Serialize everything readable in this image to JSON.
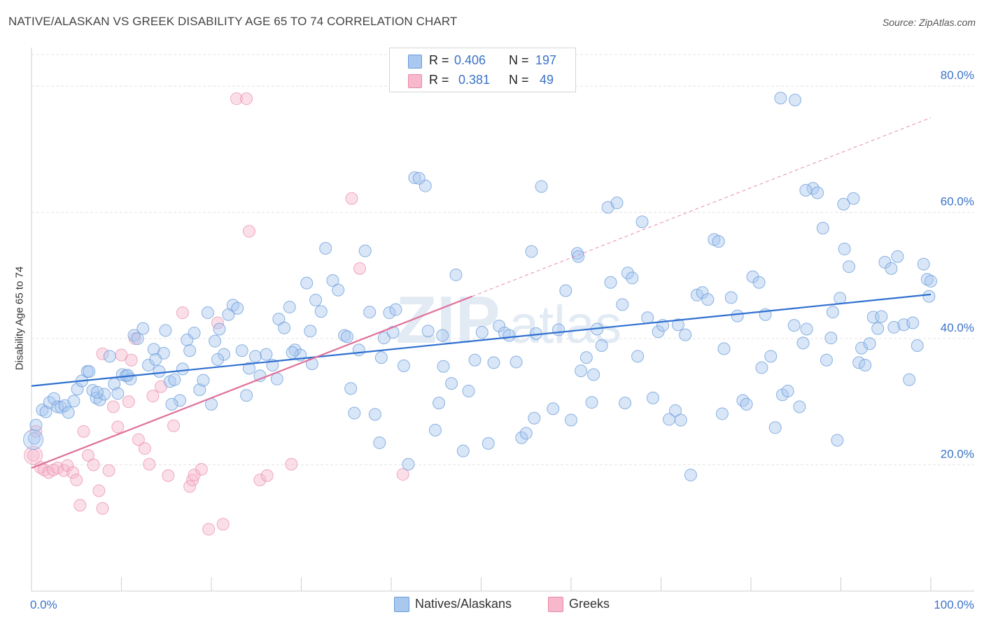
{
  "header": {
    "title": "NATIVE/ALASKAN VS GREEK DISABILITY AGE 65 TO 74 CORRELATION CHART",
    "source": "Source: ZipAtlas.com"
  },
  "legend": {
    "series1": {
      "r_label": "R =",
      "r_value": "0.406",
      "n_label": "N =",
      "n_value": "197"
    },
    "series2": {
      "r_label": "R =",
      "r_value": "0.381",
      "n_label": "N =",
      "n_value": "49"
    }
  },
  "bottom_legend": {
    "series1": "Natives/Alaskans",
    "series2": "Greeks"
  },
  "colors": {
    "blue_fill": "#a9c8f0",
    "blue_stroke": "#6a9bd8",
    "blue_line": "#2f6fd0",
    "pink_fill": "#f7b8cc",
    "pink_stroke": "#e98aa8",
    "pink_line": "#e0709a",
    "grid": "#e4e4e4",
    "axis_label": "#3b73c8"
  },
  "chart_data": {
    "type": "scatter",
    "title": "NATIVE/ALASKAN VS GREEK DISABILITY AGE 65 TO 74 CORRELATION CHART",
    "xlabel": "",
    "ylabel": "Disability Age 65 to 74",
    "xlim": [
      0,
      100
    ],
    "ylim": [
      0,
      85
    ],
    "x_tick_labels": [
      "0.0%",
      "100.0%"
    ],
    "y_ticks": [
      20,
      40,
      60,
      80
    ],
    "y_tick_labels": [
      "20.0%",
      "40.0%",
      "60.0%",
      "80.0%"
    ],
    "grid": true,
    "legend_position": "top-center",
    "series": [
      {
        "name": "Natives/Alaskans",
        "r": 0.406,
        "n": 197,
        "trend": {
          "x": [
            0,
            100
          ],
          "y": [
            32.5,
            47.0
          ]
        },
        "points": [
          [
            0.3,
            24.2
          ],
          [
            0.5,
            26.3
          ],
          [
            1.2,
            28.7
          ],
          [
            1.6,
            28.4
          ],
          [
            2.0,
            29.9
          ],
          [
            2.5,
            30.5
          ],
          [
            2.9,
            29.2
          ],
          [
            3.3,
            29.1
          ],
          [
            3.7,
            29.4
          ],
          [
            4.1,
            28.3
          ],
          [
            4.7,
            30.1
          ],
          [
            5.1,
            32.0
          ],
          [
            5.6,
            33.3
          ],
          [
            6.2,
            34.8
          ],
          [
            6.8,
            31.8
          ],
          [
            7.2,
            30.6
          ],
          [
            7.6,
            30.3
          ],
          [
            8.1,
            31.2
          ],
          [
            8.7,
            37.2
          ],
          [
            9.2,
            32.8
          ],
          [
            9.6,
            31.3
          ],
          [
            10.1,
            34.3
          ],
          [
            10.5,
            34.1
          ],
          [
            11.0,
            33.6
          ],
          [
            11.4,
            40.5
          ],
          [
            11.8,
            40.0
          ],
          [
            12.4,
            41.6
          ],
          [
            13.0,
            35.8
          ],
          [
            13.6,
            38.3
          ],
          [
            14.2,
            34.8
          ],
          [
            14.7,
            37.7
          ],
          [
            15.4,
            33.2
          ],
          [
            15.9,
            33.5
          ],
          [
            16.5,
            30.2
          ],
          [
            16.8,
            35.2
          ],
          [
            17.3,
            39.8
          ],
          [
            17.6,
            38.1
          ],
          [
            18.1,
            40.9
          ],
          [
            18.7,
            31.9
          ],
          [
            19.1,
            33.4
          ],
          [
            19.6,
            44.1
          ],
          [
            20.0,
            29.6
          ],
          [
            20.4,
            39.6
          ],
          [
            20.9,
            41.5
          ],
          [
            21.4,
            37.5
          ],
          [
            21.9,
            43.8
          ],
          [
            22.4,
            45.3
          ],
          [
            22.9,
            44.8
          ],
          [
            23.4,
            38.1
          ],
          [
            24.2,
            35.3
          ],
          [
            24.9,
            37.2
          ],
          [
            25.4,
            34.1
          ],
          [
            26.1,
            37.5
          ],
          [
            26.8,
            35.8
          ],
          [
            27.5,
            43.1
          ],
          [
            28.1,
            41.7
          ],
          [
            28.7,
            45.0
          ],
          [
            29.3,
            38.2
          ],
          [
            29.9,
            37.4
          ],
          [
            30.6,
            48.8
          ],
          [
            31.0,
            41.2
          ],
          [
            31.6,
            46.1
          ],
          [
            32.2,
            44.3
          ],
          [
            32.7,
            54.3
          ],
          [
            33.5,
            49.2
          ],
          [
            34.1,
            47.7
          ],
          [
            34.8,
            40.5
          ],
          [
            35.5,
            32.1
          ],
          [
            35.9,
            28.2
          ],
          [
            36.4,
            38.2
          ],
          [
            37.1,
            53.9
          ],
          [
            37.6,
            44.2
          ],
          [
            38.2,
            28.0
          ],
          [
            38.7,
            23.5
          ],
          [
            39.2,
            40.1
          ],
          [
            39.8,
            44.1
          ],
          [
            40.5,
            44.6
          ],
          [
            41.4,
            35.7
          ],
          [
            41.9,
            20.1
          ],
          [
            42.6,
            65.5
          ],
          [
            43.1,
            65.4
          ],
          [
            43.8,
            64.2
          ],
          [
            44.1,
            41.2
          ],
          [
            44.9,
            25.5
          ],
          [
            45.3,
            29.8
          ],
          [
            45.8,
            35.6
          ],
          [
            46.7,
            32.9
          ],
          [
            47.2,
            50.1
          ],
          [
            48.0,
            22.2
          ],
          [
            48.6,
            31.7
          ],
          [
            49.3,
            36.6
          ],
          [
            50.1,
            41.0
          ],
          [
            50.8,
            23.4
          ],
          [
            51.4,
            36.2
          ],
          [
            52.0,
            42.0
          ],
          [
            52.6,
            40.9
          ],
          [
            53.1,
            40.5
          ],
          [
            53.9,
            36.3
          ],
          [
            54.5,
            24.3
          ],
          [
            55.0,
            25.0
          ],
          [
            55.6,
            53.8
          ],
          [
            56.1,
            40.8
          ],
          [
            56.7,
            64.1
          ],
          [
            58.0,
            28.9
          ],
          [
            58.6,
            41.4
          ],
          [
            59.4,
            47.6
          ],
          [
            60.0,
            27.1
          ],
          [
            60.7,
            53.5
          ],
          [
            61.1,
            34.9
          ],
          [
            61.7,
            37.0
          ],
          [
            62.3,
            29.9
          ],
          [
            62.9,
            41.5
          ],
          [
            63.4,
            38.9
          ],
          [
            64.1,
            60.8
          ],
          [
            64.4,
            48.9
          ],
          [
            65.1,
            61.5
          ],
          [
            65.7,
            45.4
          ],
          [
            66.3,
            50.4
          ],
          [
            66.8,
            49.6
          ],
          [
            67.4,
            37.2
          ],
          [
            67.9,
            58.5
          ],
          [
            68.5,
            43.3
          ],
          [
            69.1,
            30.6
          ],
          [
            69.7,
            41.1
          ],
          [
            70.2,
            42.1
          ],
          [
            70.9,
            27.2
          ],
          [
            71.6,
            28.6
          ],
          [
            72.2,
            27.1
          ],
          [
            72.7,
            40.6
          ],
          [
            73.3,
            18.4
          ],
          [
            74.0,
            46.9
          ],
          [
            74.6,
            47.3
          ],
          [
            75.2,
            46.2
          ],
          [
            75.9,
            55.7
          ],
          [
            76.4,
            55.4
          ],
          [
            77.0,
            38.4
          ],
          [
            77.8,
            46.5
          ],
          [
            78.5,
            43.6
          ],
          [
            79.1,
            30.2
          ],
          [
            79.5,
            29.6
          ],
          [
            80.2,
            49.8
          ],
          [
            80.9,
            48.9
          ],
          [
            81.6,
            43.8
          ],
          [
            82.2,
            37.2
          ],
          [
            82.7,
            25.9
          ],
          [
            83.5,
            31.1
          ],
          [
            84.1,
            31.7
          ],
          [
            84.8,
            42.1
          ],
          [
            85.4,
            29.2
          ],
          [
            85.8,
            39.3
          ],
          [
            86.2,
            41.5
          ],
          [
            86.9,
            63.8
          ],
          [
            87.4,
            63.1
          ],
          [
            88.0,
            57.5
          ],
          [
            88.4,
            36.6
          ],
          [
            89.1,
            44.2
          ],
          [
            89.6,
            23.9
          ],
          [
            89.9,
            46.4
          ],
          [
            90.4,
            54.2
          ],
          [
            90.9,
            51.4
          ],
          [
            91.4,
            62.2
          ],
          [
            92.0,
            36.2
          ],
          [
            92.3,
            38.5
          ],
          [
            92.7,
            35.8
          ],
          [
            93.6,
            43.4
          ],
          [
            94.1,
            41.6
          ],
          [
            94.5,
            43.5
          ],
          [
            94.9,
            52.1
          ],
          [
            95.6,
            51.1
          ],
          [
            95.9,
            41.8
          ],
          [
            96.3,
            53.0
          ],
          [
            97.0,
            42.2
          ],
          [
            97.6,
            33.5
          ],
          [
            98.0,
            42.5
          ],
          [
            98.5,
            38.9
          ],
          [
            99.2,
            51.8
          ],
          [
            99.6,
            49.4
          ],
          [
            99.8,
            46.7
          ],
          [
            100.0,
            49.1
          ],
          [
            83.3,
            78.1
          ],
          [
            84.9,
            77.8
          ],
          [
            86.1,
            63.5
          ],
          [
            90.3,
            61.3
          ],
          [
            13.8,
            36.7
          ],
          [
            23.9,
            31.0
          ],
          [
            10.7,
            34.2
          ],
          [
            7.3,
            31.5
          ],
          [
            15.6,
            29.6
          ],
          [
            27.3,
            33.6
          ],
          [
            31.2,
            36.0
          ],
          [
            35.1,
            40.3
          ],
          [
            40.2,
            41.0
          ],
          [
            55.9,
            27.4
          ],
          [
            62.5,
            34.3
          ],
          [
            66.0,
            29.8
          ],
          [
            71.9,
            42.2
          ],
          [
            76.8,
            28.1
          ],
          [
            81.2,
            35.4
          ],
          [
            88.9,
            40.1
          ],
          [
            93.2,
            39.2
          ],
          [
            60.8,
            53.0
          ],
          [
            45.7,
            40.5
          ],
          [
            38.9,
            37.0
          ],
          [
            29.0,
            37.8
          ],
          [
            20.7,
            36.7
          ],
          [
            14.9,
            41.3
          ],
          [
            6.4,
            34.8
          ]
        ]
      },
      {
        "name": "Greeks",
        "r": 0.381,
        "n": 49,
        "trend": {
          "x": [
            0,
            49
          ],
          "y": [
            19.5,
            46.7
          ]
        },
        "trend_extrapolated": {
          "x": [
            49,
            100
          ],
          "y": [
            46.7,
            75.0
          ]
        },
        "points": [
          [
            0.2,
            21.5
          ],
          [
            0.5,
            25.3
          ],
          [
            1.0,
            19.6
          ],
          [
            1.4,
            19.2
          ],
          [
            1.9,
            18.8
          ],
          [
            2.4,
            19.2
          ],
          [
            2.9,
            19.5
          ],
          [
            3.6,
            19.1
          ],
          [
            4.0,
            19.9
          ],
          [
            4.6,
            18.8
          ],
          [
            5.0,
            17.6
          ],
          [
            5.4,
            13.6
          ],
          [
            5.8,
            25.3
          ],
          [
            6.3,
            21.5
          ],
          [
            6.9,
            20.0
          ],
          [
            7.5,
            15.9
          ],
          [
            7.9,
            13.1
          ],
          [
            8.6,
            19.1
          ],
          [
            9.1,
            29.2
          ],
          [
            9.6,
            26.0
          ],
          [
            10.0,
            37.4
          ],
          [
            10.8,
            30.0
          ],
          [
            11.5,
            40.0
          ],
          [
            11.9,
            24.0
          ],
          [
            12.6,
            22.6
          ],
          [
            13.1,
            20.1
          ],
          [
            13.5,
            30.9
          ],
          [
            14.4,
            32.4
          ],
          [
            15.2,
            18.3
          ],
          [
            15.8,
            26.2
          ],
          [
            16.8,
            44.1
          ],
          [
            17.6,
            16.6
          ],
          [
            17.9,
            17.6
          ],
          [
            18.1,
            18.4
          ],
          [
            18.9,
            19.3
          ],
          [
            19.7,
            9.8
          ],
          [
            20.7,
            42.5
          ],
          [
            21.3,
            10.6
          ],
          [
            22.8,
            78.0
          ],
          [
            23.9,
            78.0
          ],
          [
            24.2,
            57.0
          ],
          [
            25.4,
            17.6
          ],
          [
            26.2,
            18.3
          ],
          [
            28.9,
            20.1
          ],
          [
            35.6,
            62.2
          ],
          [
            36.5,
            51.1
          ],
          [
            41.3,
            18.5
          ],
          [
            7.9,
            37.6
          ],
          [
            11.1,
            36.6
          ]
        ]
      }
    ]
  }
}
